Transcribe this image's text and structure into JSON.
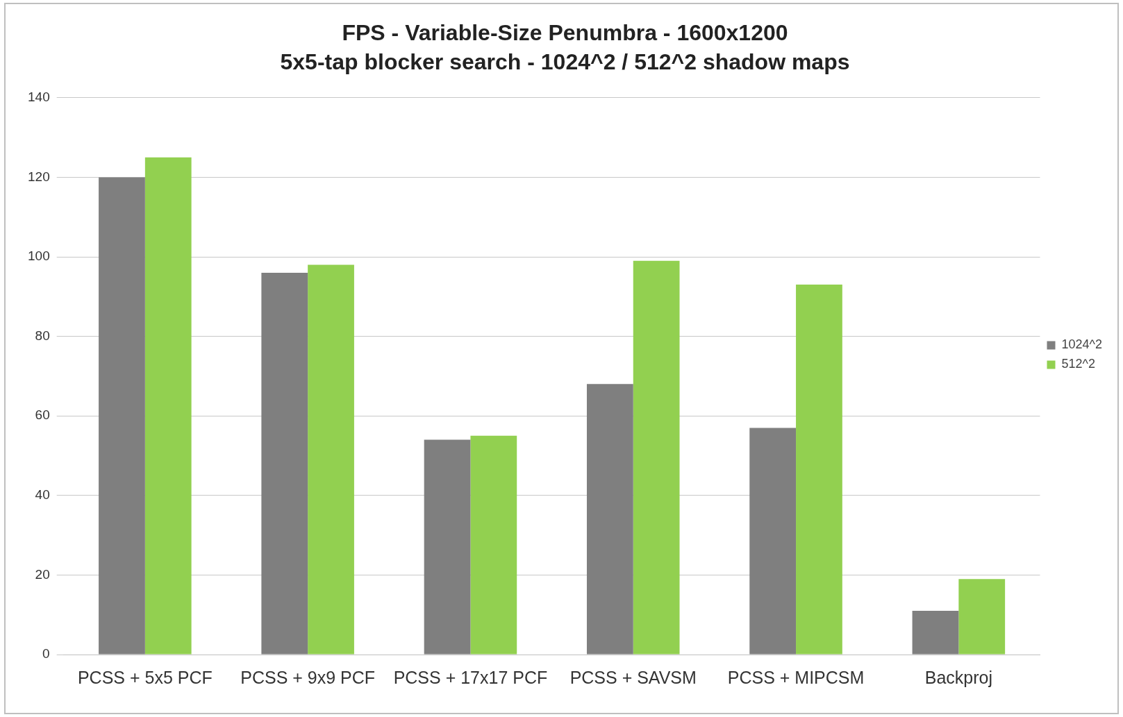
{
  "chart_data": {
    "type": "bar",
    "title": "FPS - Variable-Size Penumbra - 1600x1200",
    "subtitle": "5x5-tap blocker search - 1024^2 / 512^2 shadow maps",
    "categories": [
      "PCSS + 5x5 PCF",
      "PCSS + 9x9 PCF",
      "PCSS + 17x17 PCF",
      "PCSS + SAVSM",
      "PCSS + MIPCSM",
      "Backproj"
    ],
    "series": [
      {
        "name": "1024^2",
        "color": "#7f7f7f",
        "values": [
          120,
          96,
          54,
          68,
          57,
          11
        ]
      },
      {
        "name": "512^2",
        "color": "#92d050",
        "values": [
          125,
          98,
          55,
          99,
          93,
          19
        ]
      }
    ],
    "ylim": [
      0,
      140
    ],
    "yticks": [
      0,
      20,
      40,
      60,
      80,
      100,
      120,
      140
    ],
    "grid": "y",
    "legend": "right"
  }
}
